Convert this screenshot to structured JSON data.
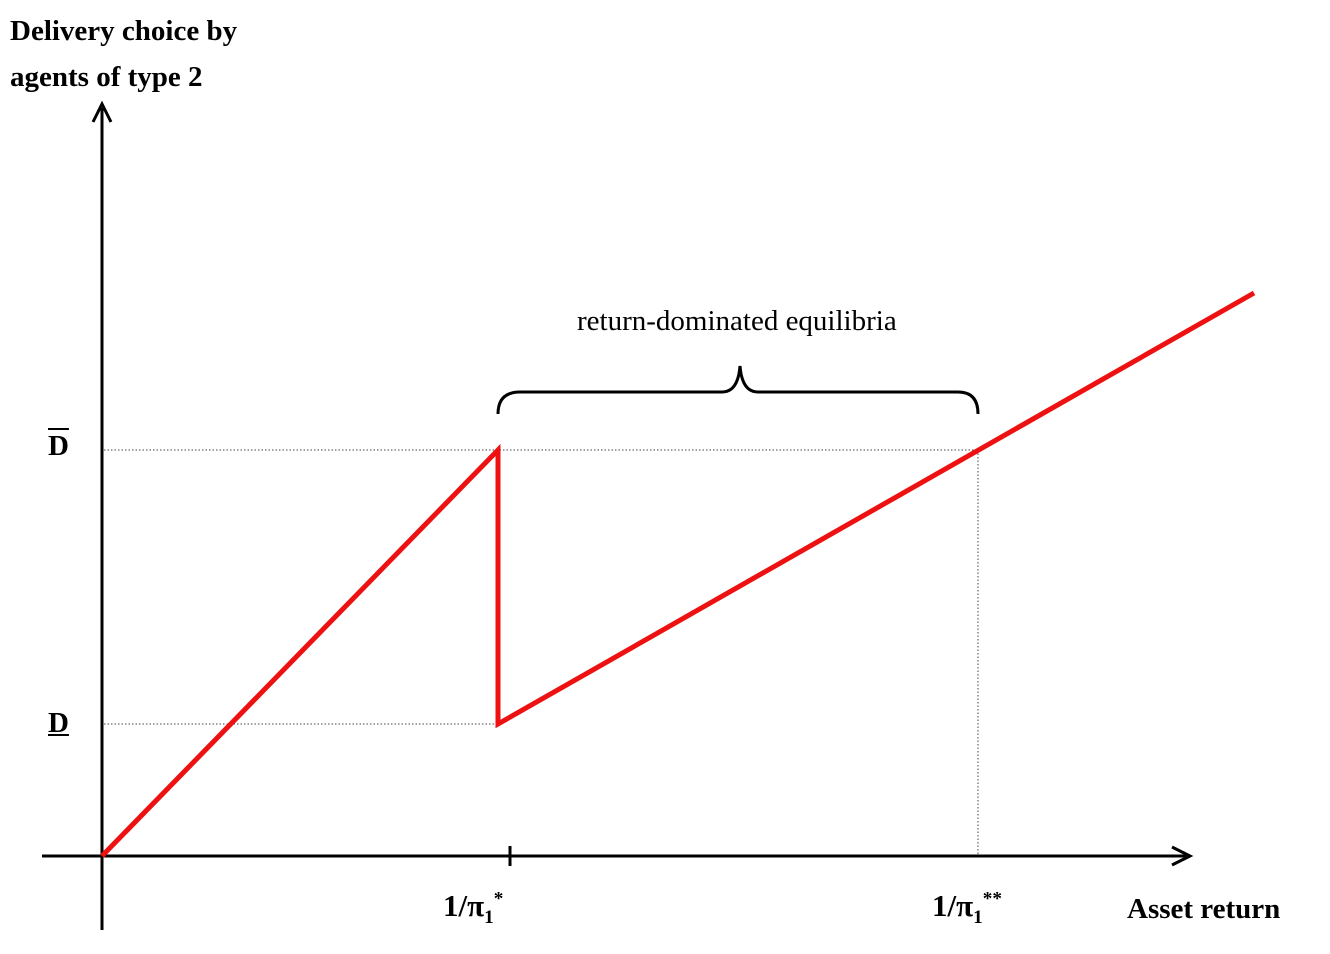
{
  "title": {
    "y_axis_line1": "Delivery choice by",
    "y_axis_line2": "agents of  type 2",
    "x_axis": "Asset return"
  },
  "y_ticks": {
    "upper": "D",
    "lower": "D"
  },
  "x_ticks": {
    "pi_star": {
      "prefix": "1/π",
      "sub": "1",
      "sup": "*"
    },
    "pi_double_star": {
      "prefix": "1/π",
      "sub": "1",
      "sup": "**"
    }
  },
  "annotation": {
    "brace_label": "return-dominated equilibria"
  },
  "colors": {
    "curve": "#ee1111",
    "axes": "#000000",
    "guides": "#444444"
  }
}
